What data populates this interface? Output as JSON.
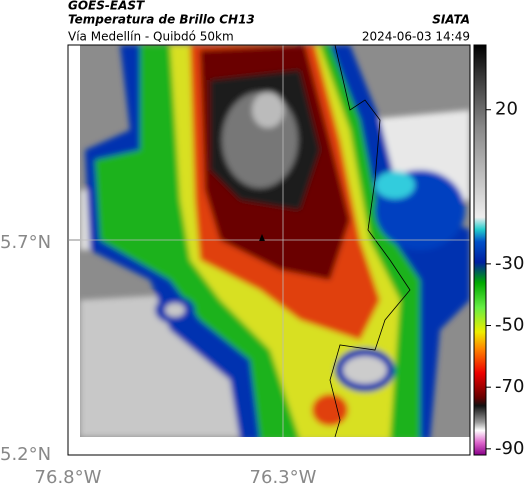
{
  "header": {
    "source": "GOES-EAST",
    "title": "Temperatura de Brillo CH13",
    "brand": "SIATA",
    "subtitle": "Vía Medellín - Quibdó 50km",
    "datetime": "2024-06-03 14:49"
  },
  "map": {
    "lat_labels": [
      "5.7°N",
      "5.2°N"
    ],
    "lon_labels": [
      "76.8°W",
      "76.3°W"
    ]
  },
  "colorbar": {
    "lim": [
      -92,
      41
    ],
    "ticks": [
      20,
      -30,
      -50,
      -70,
      -90
    ]
  }
}
